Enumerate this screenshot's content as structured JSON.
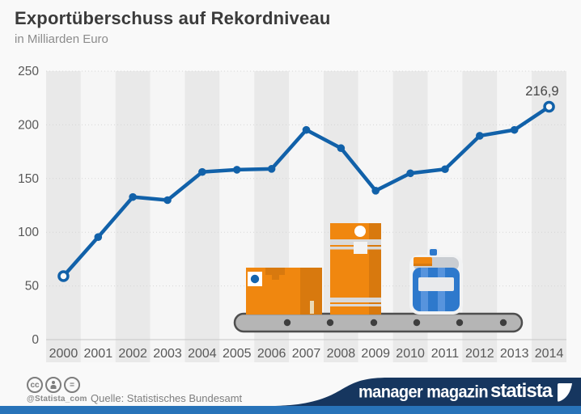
{
  "header": {
    "title": "Exportüberschuss auf Rekordniveau",
    "subtitle": "in Milliarden Euro"
  },
  "chart_data": {
    "type": "line",
    "title": "Exportüberschuss auf Rekordniveau",
    "ylabel": "in Milliarden Euro",
    "x": [
      "2000",
      "2001",
      "2002",
      "2003",
      "2004",
      "2005",
      "2006",
      "2007",
      "2008",
      "2009",
      "2010",
      "2011",
      "2012",
      "2013",
      "2014"
    ],
    "values": [
      59.1,
      95.5,
      132.8,
      129.9,
      156.1,
      158.2,
      159.0,
      195.3,
      178.3,
      138.7,
      154.9,
      158.7,
      189.8,
      195.3,
      216.9
    ],
    "ylim": [
      0,
      250
    ],
    "yticks": [
      0,
      50,
      100,
      150,
      200,
      250
    ],
    "grid": true,
    "legend": "none",
    "annotation": {
      "index": 14,
      "label": "216,9"
    },
    "open_marker_indices": [
      0,
      14
    ],
    "line_color": "#1161a9"
  },
  "illustration": {
    "items": [
      "cardboard-box",
      "tall-carton",
      "blue-canister",
      "conveyor-belt"
    ]
  },
  "footer": {
    "license_icons": [
      "cc-icon",
      "attribution-person-icon",
      "no-derivatives-icon"
    ],
    "cc_label": "cc",
    "nd_label": "=",
    "handle": "@Statista_com",
    "source": "Quelle: Statistisches Bundesamt",
    "brand_left": "manager magazin",
    "brand_right": "statista"
  },
  "colors": {
    "accent_blue": "#1161a9",
    "orange": "#f0870f",
    "dark_orange": "#d8790e",
    "navy": "#16365f",
    "bright_blue": "#2873b9",
    "stripe_gray": "#e9e9e9",
    "stripe_light": "#f6f6f6"
  }
}
